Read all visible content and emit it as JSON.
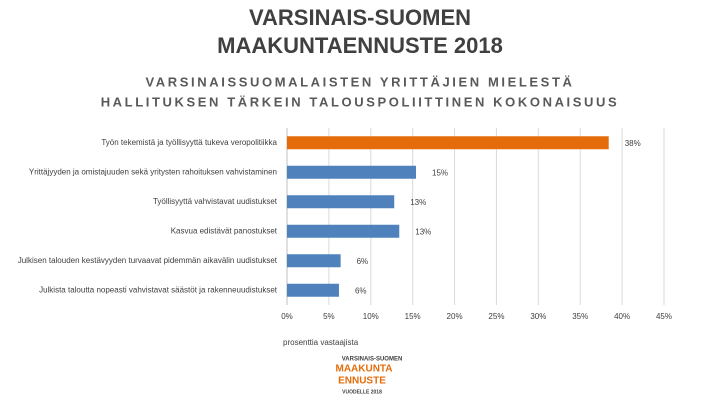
{
  "chart_data": {
    "type": "bar",
    "orientation": "horizontal",
    "title": [
      "VARSINAIS-SUOMEN",
      "MAAKUNTAENNUSTE 2018"
    ],
    "subtitle": [
      "VARSINAISSUOMALAISTEN YRITTÄJIEN MIELESTÄ",
      "HALLITUKSEN TÄRKEIN TALOUSPOLIITTINEN KOKONAISUUS"
    ],
    "categories": [
      "Työn tekemistä ja työllisyyttä tukeva veropolitiikka",
      "Yrittäjyyden ja omistajuuden sekä yritysten rahoituksen vahvistaminen",
      "Työllisyyttä vahvistavat uudistukset",
      "Kasvua edistävät panostukset",
      "Julkisen talouden kestävyyden turvaavat pidemmän aikavälin uudistukset",
      "Julkista taloutta nopeasti vahvistavat säästöt ja rakenneuudistukset"
    ],
    "values": [
      38.4,
      15.4,
      12.8,
      13.4,
      6.4,
      6.2
    ],
    "value_labels": [
      "38%",
      "15%",
      "13%",
      "13%",
      "6%",
      "6%"
    ],
    "colors": [
      "#e46c0a",
      "#4f81bd",
      "#4f81bd",
      "#4f81bd",
      "#4f81bd",
      "#4f81bd"
    ],
    "xlim": [
      0,
      45
    ],
    "xticks": [
      {
        "value": 0,
        "label": "0%"
      },
      {
        "value": 5,
        "label": "5%"
      },
      {
        "value": 10,
        "label": "10%"
      },
      {
        "value": 15,
        "label": "15%"
      },
      {
        "value": 20,
        "label": "20%"
      },
      {
        "value": 25,
        "label": "25%"
      },
      {
        "value": 30,
        "label": "30%"
      },
      {
        "value": 35,
        "label": "35%"
      },
      {
        "value": 40,
        "label": "40%"
      },
      {
        "value": 45,
        "label": "45%"
      }
    ],
    "xlabel": "prosenttia vastaajista",
    "grid": true,
    "logo": [
      "VARSINAIS-SUOMEN",
      "MAAKUNTA",
      "ENNUSTE",
      "VUODELLE 2018"
    ]
  }
}
